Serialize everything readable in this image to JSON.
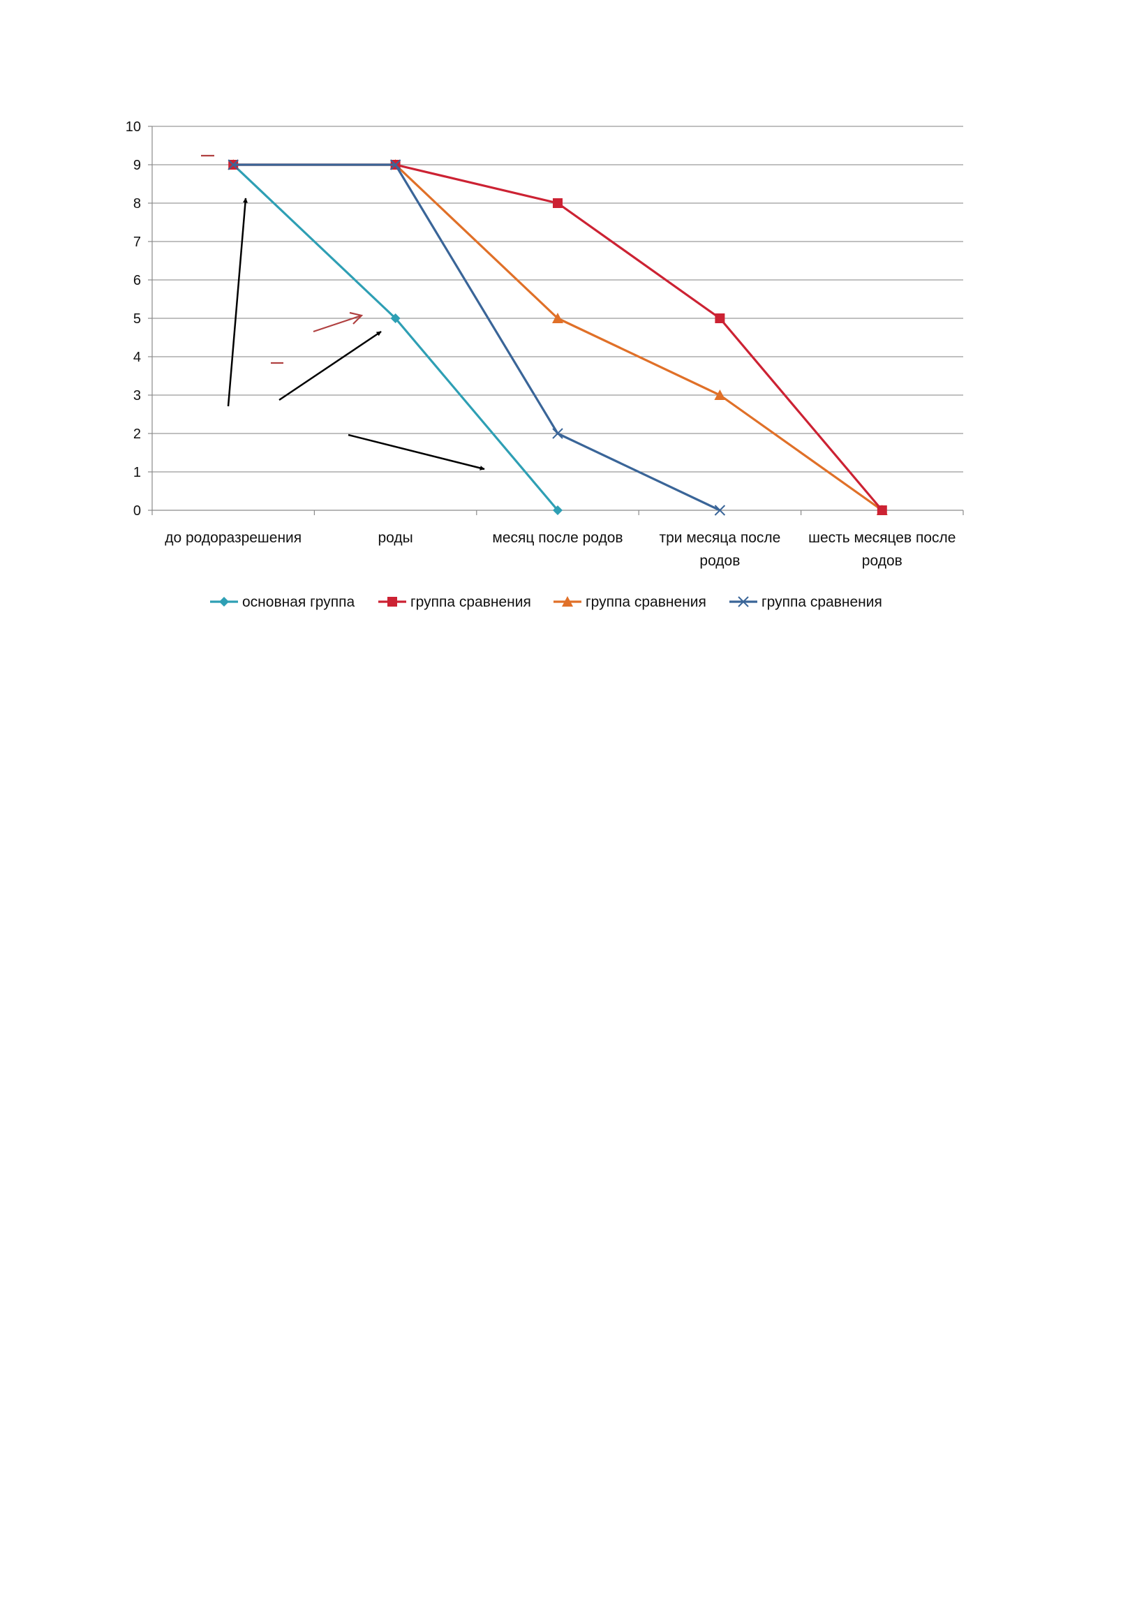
{
  "chart_data": {
    "type": "line",
    "title": "",
    "xlabel": "",
    "ylabel": "",
    "categories": [
      [
        "до родоразрешения"
      ],
      [
        "роды"
      ],
      [
        "месяц после родов"
      ],
      [
        "три месяца после",
        "родов"
      ],
      [
        "шесть месяцев после",
        "родов"
      ]
    ],
    "ylim": [
      0,
      10
    ],
    "yticks": [
      0,
      1,
      2,
      3,
      4,
      5,
      6,
      7,
      8,
      9,
      10
    ],
    "grid": true,
    "legend": "bottom",
    "series": [
      {
        "name": "основная группа",
        "color": "#2e9fb4",
        "marker": "diamond",
        "values": [
          9,
          5,
          0,
          null,
          null
        ]
      },
      {
        "name": "группа сравнения",
        "color": "#cc2233",
        "marker": "square",
        "values": [
          9,
          9,
          8,
          5,
          0
        ]
      },
      {
        "name": "группа сравнения",
        "color": "#e07028",
        "marker": "triangle",
        "values": [
          9,
          9,
          5,
          3,
          0
        ]
      },
      {
        "name": "группа сравнения",
        "color": "#3a6598",
        "marker": "x",
        "values": [
          9,
          9,
          2,
          0,
          null
        ]
      }
    ],
    "annotations": {
      "black_arrows": 3,
      "red_arrows": 1,
      "red_dashes": 2,
      "arrow_color": "#000000",
      "accent_color": "#b04040"
    }
  }
}
